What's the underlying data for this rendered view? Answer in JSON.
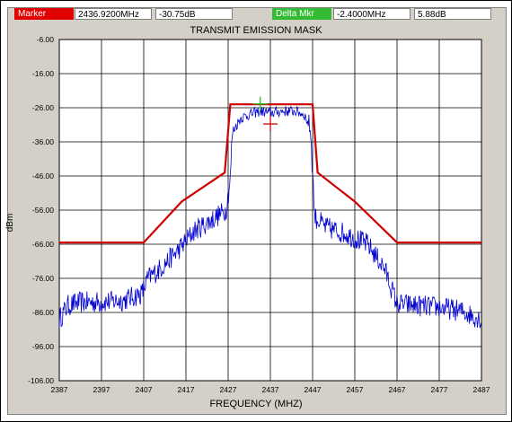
{
  "header": {
    "marker_label": "Marker",
    "marker_freq": "2436.9200MHz",
    "marker_level": "-30.75dB",
    "delta_label": "Delta Mkr",
    "delta_freq": "-2.4000MHz",
    "delta_level": "5.88dB"
  },
  "colors": {
    "marker_label_bg": "#e00000",
    "delta_label_bg": "#33bb33",
    "mask_line": "#d00000",
    "trace_line": "#0000d0",
    "grid": "#000000"
  },
  "chart_data": {
    "type": "line",
    "title": "TRANSMIT EMISSION MASK",
    "xlabel": "FREQUENCY (MHZ)",
    "ylabel": "dBm",
    "xlim": [
      2387,
      2487
    ],
    "ylim": [
      -106,
      -6
    ],
    "x_ticks": [
      "2387",
      "2397",
      "2407",
      "2417",
      "2427",
      "2437",
      "2447",
      "2457",
      "2467",
      "2477",
      "2487"
    ],
    "y_ticks": [
      "-6.00",
      "-16.00",
      "-26.00",
      "-36.00",
      "-46.00",
      "-56.00",
      "-66.00",
      "-76.00",
      "-86.00",
      "-96.00",
      "-106.00"
    ],
    "grid": true,
    "series": [
      {
        "role": "mask",
        "x": [
          2387,
          2407,
          2416,
          2426.2,
          2427.5,
          2447,
          2448.2,
          2457,
          2467,
          2487
        ],
        "y": [
          -65.5,
          -65.5,
          -53.5,
          -45,
          -25,
          -25,
          -45,
          -53.5,
          -65.5,
          -65.5
        ]
      },
      {
        "role": "spectrum",
        "x": [
          2387,
          2389,
          2392,
          2397,
          2402,
          2406.5,
          2408,
          2411,
          2415,
          2419,
          2423,
          2426.5,
          2427.5,
          2428,
          2430,
          2432,
          2434.5,
          2437,
          2440,
          2443,
          2445,
          2446.5,
          2447.5,
          2450,
          2455,
          2460,
          2464,
          2467,
          2472,
          2477,
          2482,
          2485,
          2487
        ],
        "y": [
          -88,
          -84,
          -83,
          -83,
          -82.5,
          -80.5,
          -76,
          -73,
          -68,
          -62,
          -59,
          -56,
          -47,
          -33,
          -29,
          -28,
          -27,
          -27.5,
          -27,
          -27,
          -28,
          -32,
          -58,
          -61,
          -63,
          -66,
          -73,
          -83.5,
          -84,
          -84.5,
          -85.5,
          -87,
          -88
        ]
      }
    ],
    "markers": [
      {
        "name": "Marker",
        "x": 2437,
        "y": -30.75
      },
      {
        "name": "Delta Mkr",
        "x": 2434.6,
        "y": -24.87
      }
    ]
  }
}
